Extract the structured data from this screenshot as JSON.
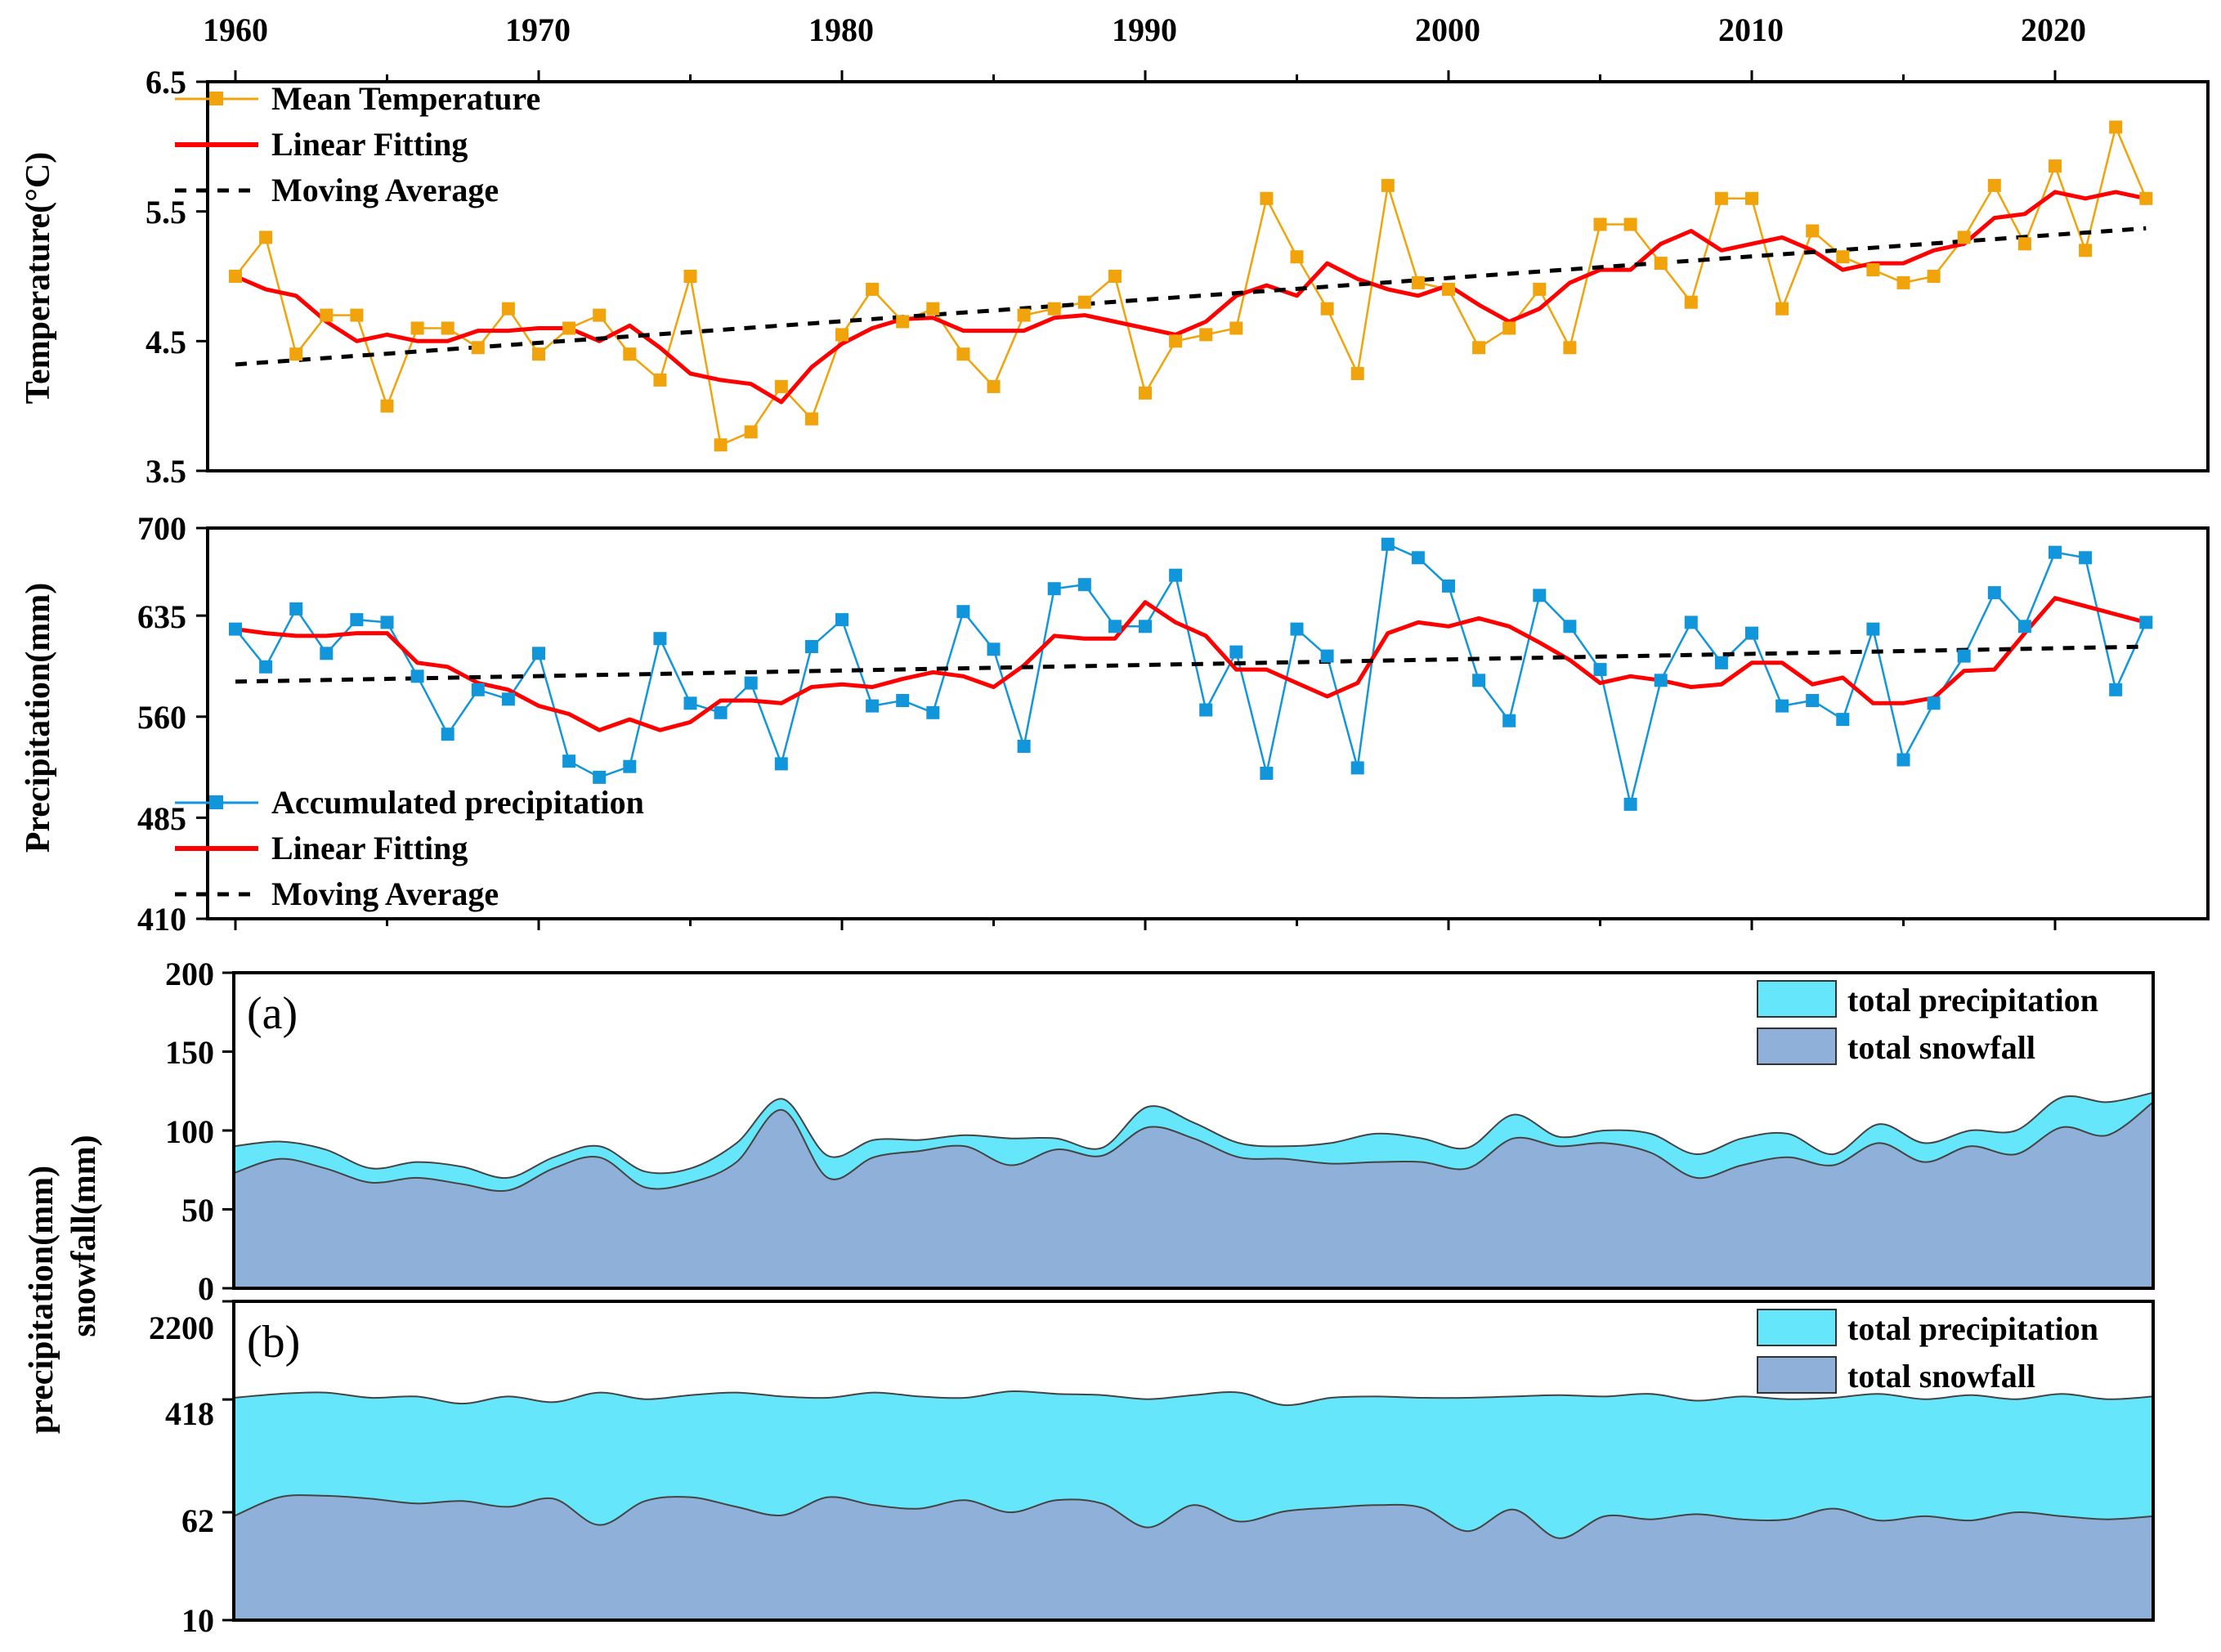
{
  "figure": {
    "label_precip": "precipitation(mm)",
    "label_snow": "snowfall(mm)"
  },
  "chart_data": [
    {
      "type": "line",
      "panel": "temperature",
      "ylabel": "Temperature(°C)",
      "ylim": [
        3.5,
        6.5
      ],
      "yticks": [
        "3.5",
        "4.5",
        "5.5",
        "6.5"
      ],
      "x_start": 1960,
      "x_ticks": [
        "1960",
        "1970",
        "1980",
        "1990",
        "2000",
        "2010",
        "2020"
      ],
      "xlim": [
        1960,
        2023
      ],
      "legend_position": "top-left",
      "series": [
        {
          "name": "Mean Temperature",
          "color": "#f0a30a",
          "values": [
            5.0,
            5.3,
            4.4,
            4.7,
            4.7,
            4.0,
            4.6,
            4.6,
            4.45,
            4.75,
            4.4,
            4.6,
            4.7,
            4.4,
            4.2,
            5.0,
            3.7,
            3.8,
            4.15,
            3.9,
            4.55,
            4.9,
            4.65,
            4.75,
            4.4,
            4.15,
            4.7,
            4.75,
            4.8,
            5.0,
            4.1,
            4.5,
            4.55,
            4.6,
            5.6,
            5.15,
            4.75,
            4.25,
            5.7,
            4.95,
            4.9,
            4.45,
            4.6,
            4.9,
            4.45,
            5.4,
            5.4,
            5.1,
            4.8,
            5.6,
            5.6,
            4.75,
            5.35,
            5.15,
            5.05,
            4.95,
            5.0,
            5.3,
            5.7,
            5.25,
            5.85,
            5.2,
            6.15,
            5.6
          ]
        },
        {
          "name": "Linear Fitting",
          "color": "#ff0000",
          "values": [
            5.0,
            4.9,
            4.85,
            4.65,
            4.5,
            4.55,
            4.5,
            4.5,
            4.58,
            4.58,
            4.6,
            4.6,
            4.5,
            4.62,
            4.45,
            4.25,
            4.2,
            4.17,
            4.03,
            4.3,
            4.48,
            4.6,
            4.67,
            4.68,
            4.58,
            4.58,
            4.58,
            4.68,
            4.7,
            4.65,
            4.6,
            4.55,
            4.65,
            4.85,
            4.93,
            4.85,
            5.1,
            4.98,
            4.9,
            4.85,
            4.93,
            4.78,
            4.65,
            4.75,
            4.95,
            5.05,
            5.05,
            5.25,
            5.35,
            5.2,
            5.25,
            5.3,
            5.2,
            5.05,
            5.1,
            5.1,
            5.2,
            5.25,
            5.45,
            5.48,
            5.65,
            5.6,
            5.65,
            5.6
          ]
        },
        {
          "name": "Moving Average",
          "color": "#000000",
          "dashed": true,
          "start": 4.32,
          "end": 5.37
        }
      ]
    },
    {
      "type": "line",
      "panel": "precipitation",
      "ylabel": "Precipitation(mm)",
      "ylim": [
        410,
        700
      ],
      "yticks": [
        "410",
        "485",
        "560",
        "635",
        "700"
      ],
      "x_start": 1960,
      "xlim": [
        1960,
        2023
      ],
      "legend_position": "bottom-left",
      "series": [
        {
          "name": "Accumulated precipitation",
          "color": "#1296db",
          "values": [
            625,
            597,
            640,
            607,
            632,
            630,
            590,
            547,
            580,
            573,
            607,
            527,
            515,
            523,
            618,
            570,
            563,
            585,
            525,
            612,
            632,
            568,
            572,
            563,
            638,
            610,
            538,
            655,
            658,
            627,
            627,
            665,
            565,
            608,
            518,
            625,
            605,
            522,
            688,
            678,
            657,
            587,
            557,
            650,
            627,
            595,
            495,
            587,
            630,
            600,
            622,
            568,
            572,
            558,
            625,
            528,
            570,
            605,
            652,
            627,
            682,
            678,
            580,
            630
          ]
        },
        {
          "name": "Linear Fitting",
          "color": "#ff0000",
          "values": [
            625,
            622,
            620,
            620,
            622,
            622,
            600,
            597,
            585,
            580,
            568,
            562,
            550,
            558,
            550,
            556,
            572,
            572,
            570,
            582,
            584,
            582,
            588,
            593,
            590,
            582,
            598,
            620,
            618,
            618,
            645,
            630,
            620,
            595,
            595,
            585,
            575,
            585,
            622,
            630,
            627,
            633,
            627,
            615,
            602,
            585,
            590,
            587,
            582,
            584,
            600,
            600,
            584,
            589,
            570,
            570,
            574,
            594,
            595,
            622,
            648,
            642,
            636,
            630
          ]
        },
        {
          "name": "Moving Average",
          "color": "#000000",
          "dashed": true,
          "start": 586,
          "end": 612
        }
      ]
    },
    {
      "type": "area",
      "panel": "(a)",
      "ylim": [
        0,
        200
      ],
      "yticks": [
        "0",
        "50",
        "100",
        "150",
        "200"
      ],
      "x_start": 1960,
      "legend_position": "top-right",
      "series": [
        {
          "name": "total precipitation",
          "color": "#66e6fa",
          "values": [
            90,
            93,
            88,
            76,
            80,
            77,
            70,
            83,
            90,
            74,
            76,
            92,
            120,
            84,
            94,
            94,
            97,
            95,
            95,
            89,
            115,
            105,
            92,
            90,
            92,
            98,
            95,
            89,
            110,
            96,
            100,
            98,
            85,
            95,
            98,
            85,
            104,
            92,
            100,
            100,
            121,
            118,
            124
          ]
        },
        {
          "name": "total snowfall",
          "color": "#8fb0d8",
          "values": [
            73,
            82,
            76,
            67,
            70,
            66,
            62,
            76,
            83,
            64,
            67,
            80,
            113,
            70,
            83,
            87,
            90,
            78,
            88,
            84,
            102,
            95,
            83,
            82,
            79,
            80,
            80,
            76,
            95,
            90,
            92,
            86,
            70,
            78,
            83,
            78,
            92,
            80,
            90,
            85,
            102,
            97,
            118
          ]
        }
      ]
    },
    {
      "type": "area",
      "panel": "(b)",
      "yscale": "log",
      "ylim": [
        10,
        2200
      ],
      "yticks": [
        "10",
        "62",
        "418",
        "2200"
      ],
      "x_start": 1960,
      "legend_position": "top-right",
      "series": [
        {
          "name": "total precipitation",
          "color": "#66e6fa",
          "values": [
            430,
            460,
            470,
            430,
            440,
            390,
            440,
            400,
            470,
            420,
            450,
            470,
            440,
            430,
            470,
            440,
            430,
            480,
            460,
            450,
            420,
            450,
            470,
            380,
            430,
            440,
            430,
            430,
            440,
            450,
            440,
            460,
            410,
            440,
            420,
            430,
            460,
            420,
            450,
            420,
            460,
            420,
            440
          ]
        },
        {
          "name": "total snowfall",
          "color": "#8fb0d8",
          "values": [
            58,
            80,
            82,
            78,
            72,
            75,
            68,
            78,
            50,
            75,
            80,
            68,
            59,
            80,
            70,
            66,
            76,
            62,
            76,
            72,
            48,
            70,
            53,
            63,
            67,
            70,
            67,
            45,
            65,
            40,
            58,
            55,
            60,
            55,
            55,
            66,
            54,
            58,
            54,
            62,
            58,
            55,
            58
          ]
        }
      ]
    }
  ]
}
